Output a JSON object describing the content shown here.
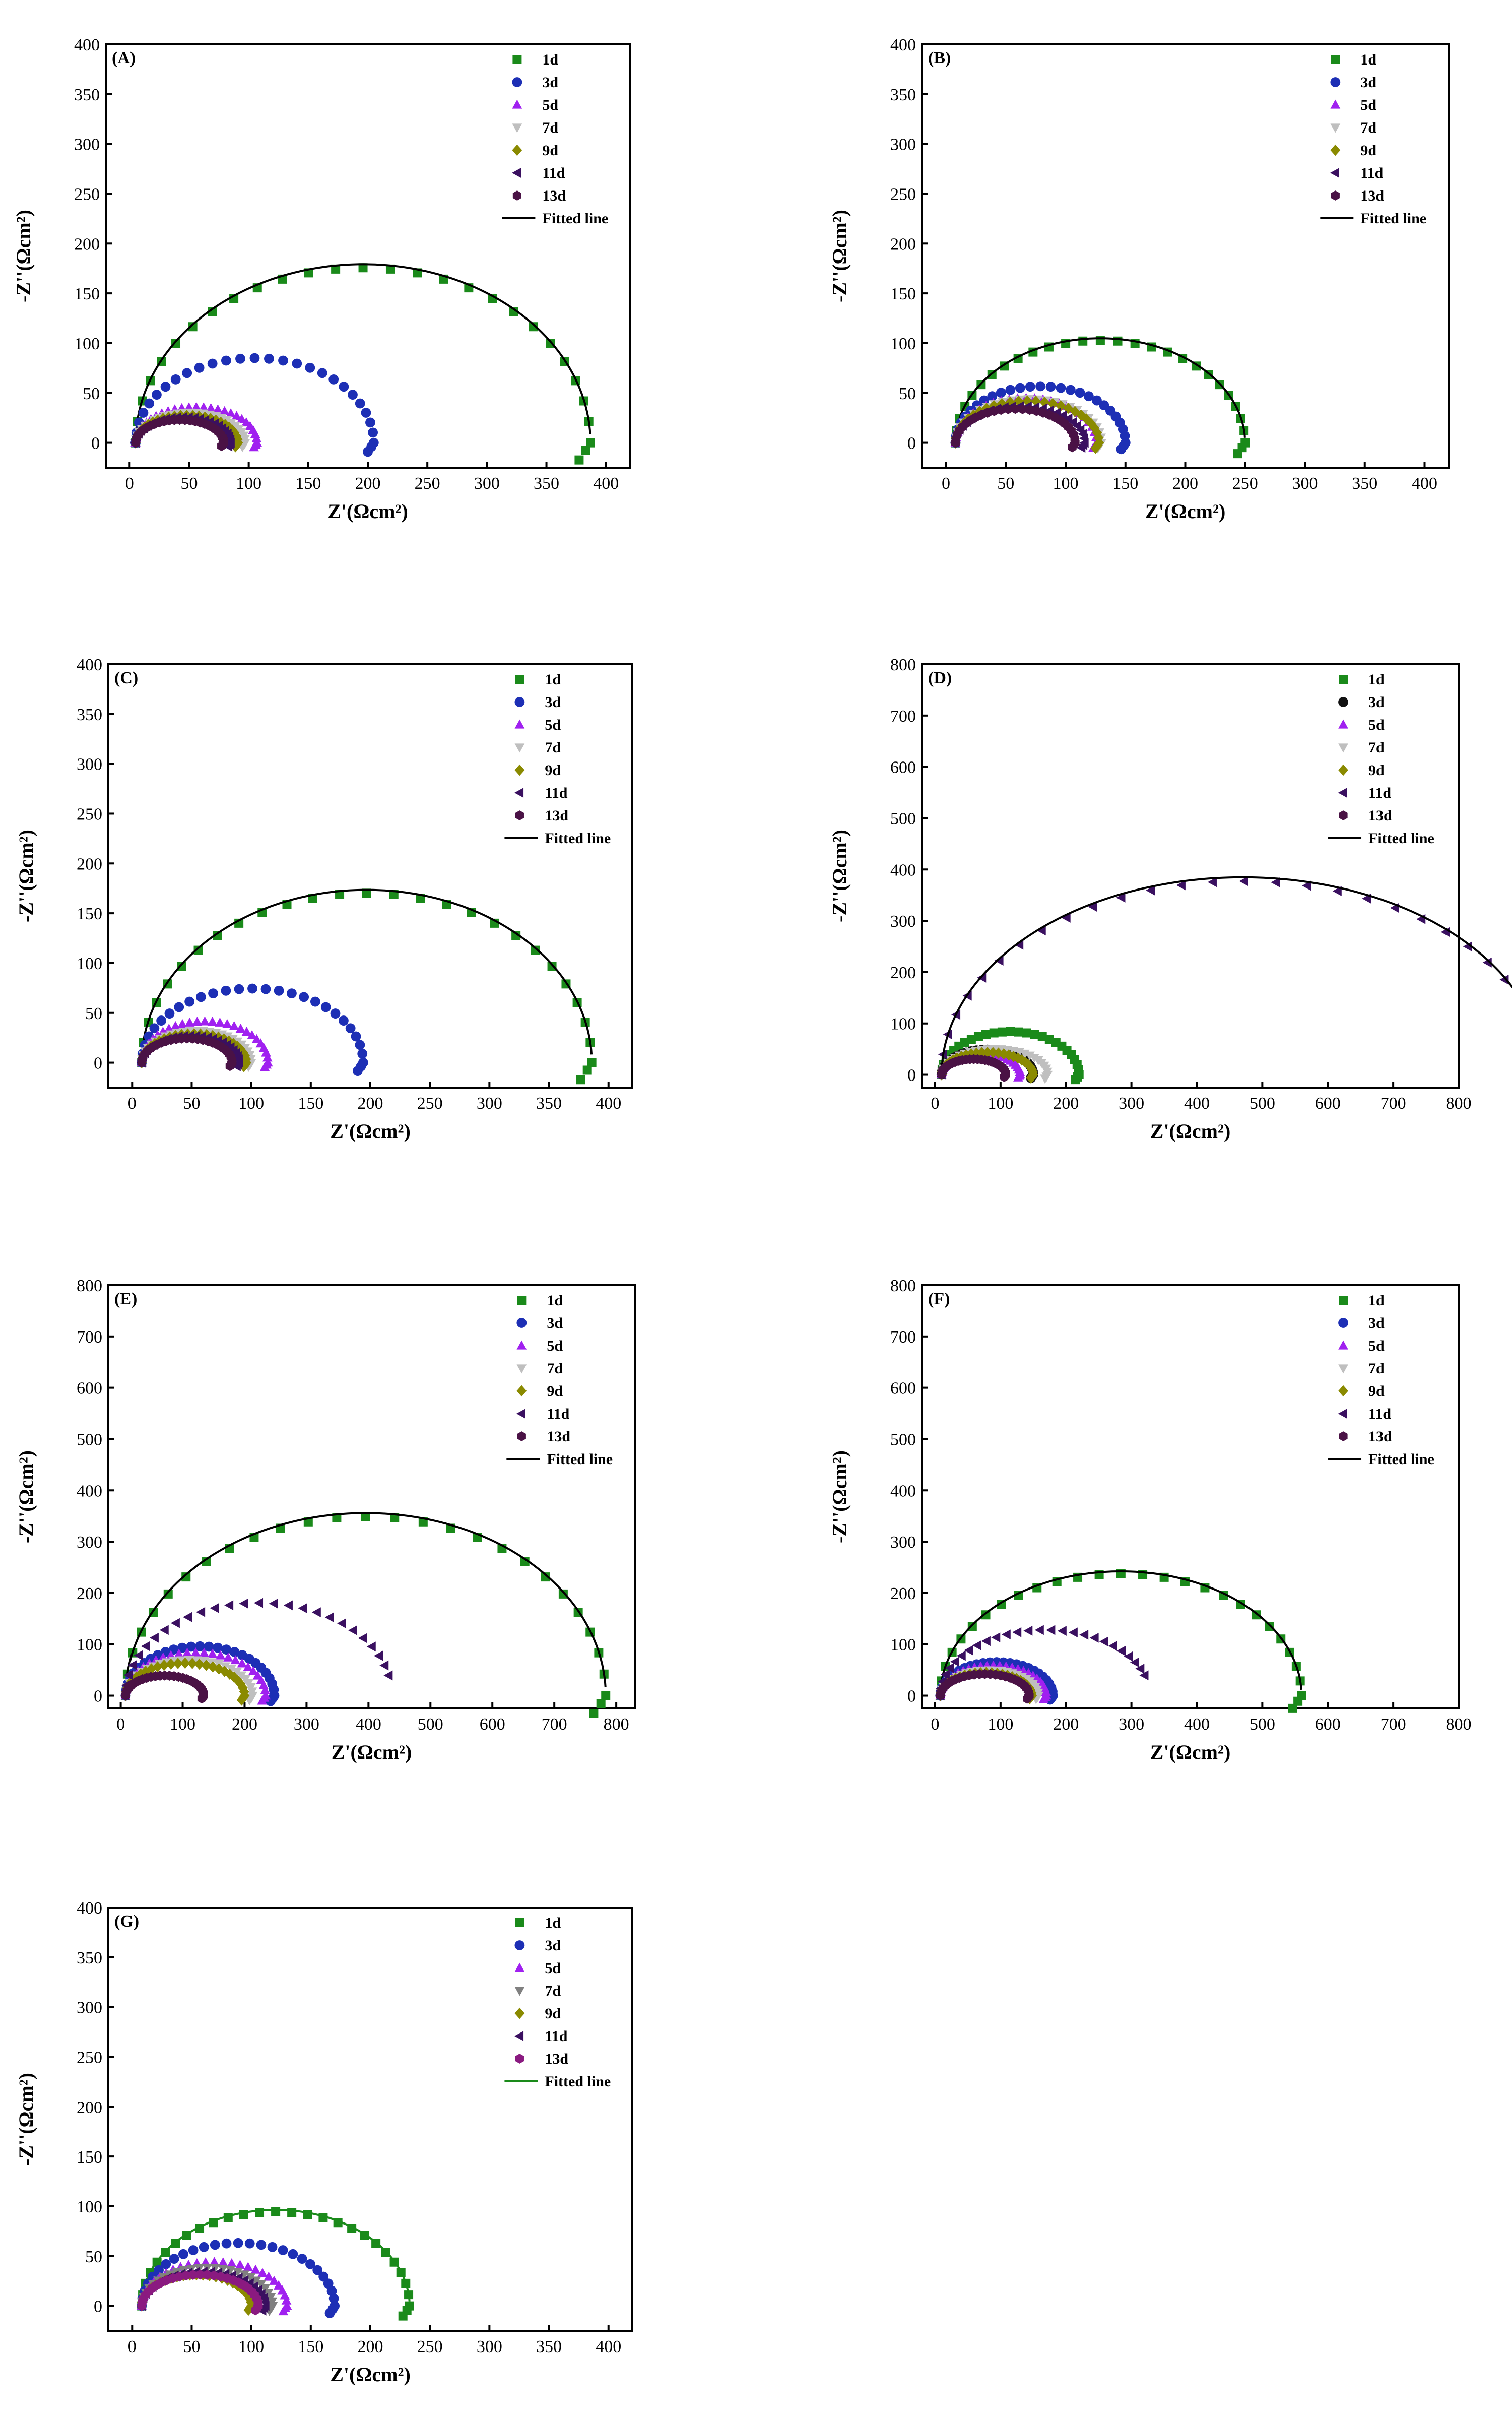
{
  "chart_data": [
    {
      "type": "scatter",
      "panel": "(A)",
      "xlabel": "Z'(Ωcm²)",
      "ylabel": "-Z''(Ωcm²)",
      "xlim": [
        -20,
        420
      ],
      "ylim": [
        -25,
        400
      ],
      "xticks": [
        0,
        50,
        100,
        150,
        200,
        250,
        300,
        350,
        400
      ],
      "yticks": [
        0,
        50,
        100,
        150,
        200,
        250,
        300,
        350,
        400
      ],
      "fit_label": "Fitted line",
      "fit_color": "#000000",
      "series": [
        {
          "name": "1d",
          "marker": "square",
          "color": "#1a8a1a",
          "r0": 5,
          "rct": 382,
          "depression": 0.92,
          "tail": true
        },
        {
          "name": "3d",
          "marker": "circle",
          "color": "#1d2fb5",
          "r0": 5,
          "rct": 200,
          "depression": 0.85,
          "tail": true
        },
        {
          "name": "5d",
          "marker": "triangle-up",
          "color": "#a020f0",
          "r0": 5,
          "rct": 102,
          "depression": 0.7,
          "tail": true
        },
        {
          "name": "7d",
          "marker": "triangle-down",
          "color": "#bfbfbf",
          "r0": 5,
          "rct": 92,
          "depression": 0.66,
          "tail": true
        },
        {
          "name": "9d",
          "marker": "diamond",
          "color": "#8a8a00",
          "r0": 5,
          "rct": 86,
          "depression": 0.64,
          "tail": true
        },
        {
          "name": "11d",
          "marker": "triangle-left",
          "color": "#3a1060",
          "r0": 5,
          "rct": 80,
          "depression": 0.64,
          "tail": true
        },
        {
          "name": "13d",
          "marker": "hexagon",
          "color": "#4a1245",
          "r0": 5,
          "rct": 74,
          "depression": 0.62,
          "tail": true
        }
      ]
    },
    {
      "type": "scatter",
      "panel": "(B)",
      "xlabel": "Z'(Ωcm²)",
      "ylabel": "-Z''(Ωcm²)",
      "xlim": [
        -20,
        420
      ],
      "ylim": [
        -25,
        400
      ],
      "xticks": [
        0,
        50,
        100,
        150,
        200,
        250,
        300,
        350,
        400
      ],
      "yticks": [
        0,
        50,
        100,
        150,
        200,
        250,
        300,
        350,
        400
      ],
      "fit_label": "Fitted line",
      "fit_color": "#000000",
      "series": [
        {
          "name": "1d",
          "marker": "square",
          "color": "#1a8a1a",
          "r0": 8,
          "rct": 242,
          "depression": 0.85,
          "tail": true
        },
        {
          "name": "3d",
          "marker": "circle",
          "color": "#1d2fb5",
          "r0": 8,
          "rct": 142,
          "depression": 0.8,
          "tail": true
        },
        {
          "name": "5d",
          "marker": "triangle-up",
          "color": "#a020f0",
          "r0": 8,
          "rct": 118,
          "depression": 0.76,
          "tail": true
        },
        {
          "name": "7d",
          "marker": "triangle-down",
          "color": "#bfbfbf",
          "r0": 8,
          "rct": 122,
          "depression": 0.72,
          "tail": true
        },
        {
          "name": "9d",
          "marker": "diamond",
          "color": "#8a8a00",
          "r0": 8,
          "rct": 120,
          "depression": 0.7,
          "tail": true
        },
        {
          "name": "11d",
          "marker": "triangle-left",
          "color": "#3a1060",
          "r0": 8,
          "rct": 108,
          "depression": 0.68,
          "tail": true
        },
        {
          "name": "13d",
          "marker": "hexagon",
          "color": "#4a1245",
          "r0": 8,
          "rct": 100,
          "depression": 0.68,
          "tail": true
        }
      ]
    },
    {
      "type": "scatter",
      "panel": "(C)",
      "xlabel": "Z'(Ωcm²)",
      "ylabel": "-Z''(Ωcm²)",
      "xlim": [
        -20,
        420
      ],
      "ylim": [
        -25,
        400
      ],
      "xticks": [
        0,
        50,
        100,
        150,
        200,
        250,
        300,
        350,
        400
      ],
      "yticks": [
        0,
        50,
        100,
        150,
        200,
        250,
        300,
        350,
        400
      ],
      "fit_label": "Fitted line",
      "fit_color": "#000000",
      "series": [
        {
          "name": "1d",
          "marker": "square",
          "color": "#1a8a1a",
          "r0": 8,
          "rct": 378,
          "depression": 0.9,
          "tail": true
        },
        {
          "name": "3d",
          "marker": "circle",
          "color": "#1d2fb5",
          "r0": 8,
          "rct": 186,
          "depression": 0.8,
          "tail": true
        },
        {
          "name": "5d",
          "marker": "triangle-up",
          "color": "#a020f0",
          "r0": 8,
          "rct": 106,
          "depression": 0.78,
          "tail": true
        },
        {
          "name": "7d",
          "marker": "triangle-down",
          "color": "#bfbfbf",
          "r0": 8,
          "rct": 92,
          "depression": 0.7,
          "tail": true
        },
        {
          "name": "9d",
          "marker": "diamond",
          "color": "#8a8a00",
          "r0": 8,
          "rct": 88,
          "depression": 0.66,
          "tail": true
        },
        {
          "name": "11d",
          "marker": "triangle-left",
          "color": "#3a1060",
          "r0": 8,
          "rct": 82,
          "depression": 0.66,
          "tail": true
        },
        {
          "name": "13d",
          "marker": "hexagon",
          "color": "#4a1245",
          "r0": 8,
          "rct": 76,
          "depression": 0.64,
          "tail": true
        }
      ]
    },
    {
      "type": "scatter",
      "panel": "(D)",
      "xlabel": "Z'(Ωcm²)",
      "ylabel": "-Z''(Ωcm²)",
      "xlim": [
        -20,
        800
      ],
      "ylim": [
        -25,
        800
      ],
      "xticks": [
        0,
        100,
        200,
        300,
        400,
        500,
        600,
        700,
        800
      ],
      "yticks": [
        0,
        100,
        200,
        300,
        400,
        500,
        600,
        700,
        800
      ],
      "fit_label": "Fitted line",
      "fit_color": "#000000",
      "series": [
        {
          "name": "1d",
          "marker": "square",
          "color": "#1a8a1a",
          "r0": 10,
          "rct": 210,
          "depression": 0.8,
          "tail": true
        },
        {
          "name": "3d",
          "marker": "circle",
          "color": "#111111",
          "r0": 10,
          "rct": 140,
          "depression": 0.7,
          "tail": true
        },
        {
          "name": "5d",
          "marker": "triangle-up",
          "color": "#a020f0",
          "r0": 10,
          "rct": 120,
          "depression": 0.68,
          "tail": true
        },
        {
          "name": "7d",
          "marker": "triangle-down",
          "color": "#bfbfbf",
          "r0": 10,
          "rct": 162,
          "depression": 0.62,
          "tail": true
        },
        {
          "name": "9d",
          "marker": "diamond",
          "color": "#8a8a00",
          "r0": 10,
          "rct": 140,
          "depression": 0.62,
          "tail": true
        },
        {
          "name": "11d",
          "marker": "triangle-left",
          "color": "#3a1060",
          "r0": 10,
          "rct": 920,
          "depression": 0.82,
          "tail": false,
          "tmax": 0.87
        },
        {
          "name": "13d",
          "marker": "hexagon",
          "color": "#4a1245",
          "r0": 10,
          "rct": 98,
          "depression": 0.62,
          "tail": true
        }
      ]
    },
    {
      "type": "scatter",
      "panel": "(E)",
      "xlabel": "Z'(Ωcm²)",
      "ylabel": "-Z''(Ωcm²)",
      "xlim": [
        -20,
        830
      ],
      "ylim": [
        -25,
        800
      ],
      "xticks": [
        0,
        100,
        200,
        300,
        400,
        500,
        600,
        700,
        800
      ],
      "yticks": [
        0,
        100,
        200,
        300,
        400,
        500,
        600,
        700,
        800
      ],
      "fit_label": "Fitted line",
      "fit_color": "#000000",
      "series": [
        {
          "name": "1d",
          "marker": "square",
          "color": "#1a8a1a",
          "r0": 8,
          "rct": 775,
          "depression": 0.9,
          "tail": true
        },
        {
          "name": "3d",
          "marker": "circle",
          "color": "#1d2fb5",
          "r0": 8,
          "rct": 240,
          "depression": 0.8,
          "tail": true
        },
        {
          "name": "5d",
          "marker": "triangle-up",
          "color": "#a020f0",
          "r0": 8,
          "rct": 226,
          "depression": 0.74,
          "tail": true
        },
        {
          "name": "7d",
          "marker": "triangle-down",
          "color": "#bfbfbf",
          "r0": 8,
          "rct": 205,
          "depression": 0.68,
          "tail": true
        },
        {
          "name": "9d",
          "marker": "diamond",
          "color": "#8a8a00",
          "r0": 8,
          "rct": 192,
          "depression": 0.66,
          "tail": true
        },
        {
          "name": "11d",
          "marker": "triangle-left",
          "color": "#3a1060",
          "r0": 8,
          "rct": 430,
          "depression": 0.84,
          "tail": false,
          "tmax": 0.93
        },
        {
          "name": "13d",
          "marker": "hexagon",
          "color": "#4a1245",
          "r0": 8,
          "rct": 126,
          "depression": 0.62,
          "tail": true
        }
      ]
    },
    {
      "type": "scatter",
      "panel": "(F)",
      "xlabel": "Z'(Ωcm²)",
      "ylabel": "-Z''(Ωcm²)",
      "xlim": [
        -20,
        800
      ],
      "ylim": [
        -25,
        800
      ],
      "xticks": [
        0,
        100,
        200,
        300,
        400,
        500,
        600,
        700,
        800
      ],
      "yticks": [
        0,
        100,
        200,
        300,
        400,
        500,
        600,
        700,
        800
      ],
      "fit_label": "Fitted line",
      "fit_color": "#000000",
      "series": [
        {
          "name": "1d",
          "marker": "square",
          "color": "#1a8a1a",
          "r0": 8,
          "rct": 552,
          "depression": 0.86,
          "tail": true
        },
        {
          "name": "3d",
          "marker": "circle",
          "color": "#1d2fb5",
          "r0": 8,
          "rct": 172,
          "depression": 0.76,
          "tail": true
        },
        {
          "name": "5d",
          "marker": "triangle-up",
          "color": "#a020f0",
          "r0": 8,
          "rct": 162,
          "depression": 0.72,
          "tail": true
        },
        {
          "name": "7d",
          "marker": "triangle-down",
          "color": "#bfbfbf",
          "r0": 8,
          "rct": 150,
          "depression": 0.66,
          "tail": true
        },
        {
          "name": "9d",
          "marker": "diamond",
          "color": "#8a8a00",
          "r0": 8,
          "rct": 140,
          "depression": 0.64,
          "tail": true
        },
        {
          "name": "11d",
          "marker": "triangle-left",
          "color": "#3a1060",
          "r0": 8,
          "rct": 320,
          "depression": 0.8,
          "tail": false,
          "tmax": 0.9
        },
        {
          "name": "13d",
          "marker": "hexagon",
          "color": "#4a1245",
          "r0": 8,
          "rct": 136,
          "depression": 0.62,
          "tail": true
        }
      ]
    },
    {
      "type": "scatter",
      "panel": "(G)",
      "xlabel": "Z'(Ωcm²)",
      "ylabel": "-Z''(Ωcm²)",
      "xlim": [
        -20,
        420
      ],
      "ylim": [
        -25,
        400
      ],
      "xticks": [
        0,
        50,
        100,
        150,
        200,
        250,
        300,
        350,
        400
      ],
      "yticks": [
        0,
        50,
        100,
        150,
        200,
        250,
        300,
        350,
        400
      ],
      "fit_label": "Fitted line",
      "fit_color": "#1a8a1a",
      "series": [
        {
          "name": "1d",
          "marker": "square",
          "color": "#1a8a1a",
          "r0": 8,
          "rct": 225,
          "depression": 0.84,
          "tail": true
        },
        {
          "name": "3d",
          "marker": "circle",
          "color": "#1d2fb5",
          "r0": 8,
          "rct": 162,
          "depression": 0.78,
          "tail": true
        },
        {
          "name": "5d",
          "marker": "triangle-up",
          "color": "#a020f0",
          "r0": 8,
          "rct": 122,
          "depression": 0.72,
          "tail": true
        },
        {
          "name": "7d",
          "marker": "triangle-down",
          "color": "#808080",
          "r0": 8,
          "rct": 110,
          "depression": 0.7,
          "tail": true
        },
        {
          "name": "9d",
          "marker": "diamond",
          "color": "#8a8a00",
          "r0": 8,
          "rct": 92,
          "depression": 0.68,
          "tail": true
        },
        {
          "name": "11d",
          "marker": "triangle-left",
          "color": "#3a1060",
          "r0": 8,
          "rct": 104,
          "depression": 0.66,
          "tail": true
        },
        {
          "name": "13d",
          "marker": "hexagon",
          "color": "#8a1a80",
          "r0": 8,
          "rct": 98,
          "depression": 0.64,
          "tail": true
        }
      ]
    }
  ]
}
